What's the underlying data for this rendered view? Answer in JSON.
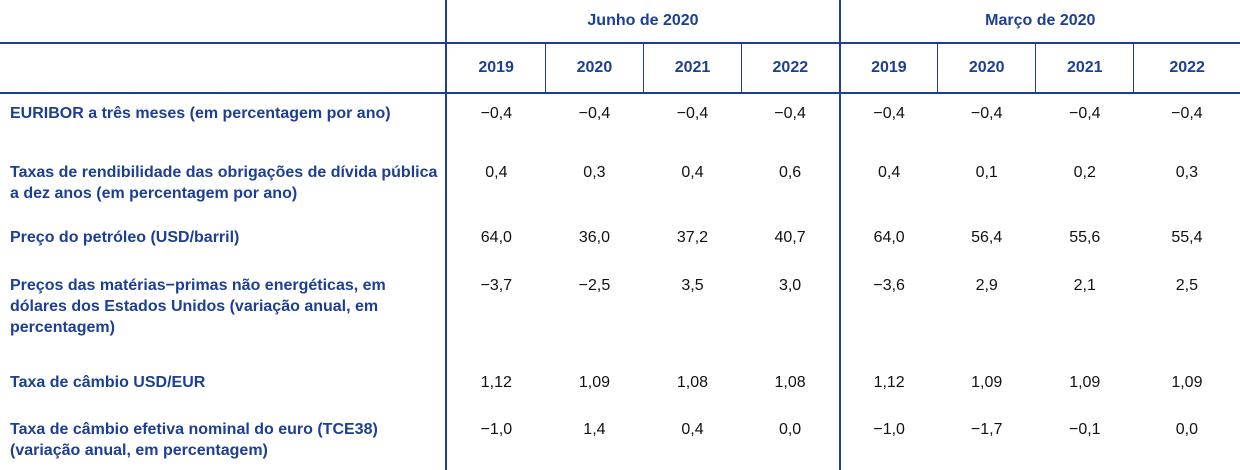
{
  "table": {
    "groups": [
      "Junho de 2020",
      "Março de 2020"
    ],
    "years": [
      "2019",
      "2020",
      "2021",
      "2022",
      "2019",
      "2020",
      "2021",
      "2022"
    ],
    "rows": [
      {
        "label": "EURIBOR a três meses (em percentagem por ano)",
        "values": [
          "−0,4",
          "−0,4",
          "−0,4",
          "−0,4",
          "−0,4",
          "−0,4",
          "−0,4",
          "−0,4"
        ]
      },
      {
        "label": "Taxas de rendibilidade das obrigações de dívida pública a dez anos (em percentagem por ano)",
        "values": [
          "0,4",
          "0,3",
          "0,4",
          "0,6",
          "0,4",
          "0,1",
          "0,2",
          "0,3"
        ]
      },
      {
        "label": "Preço do petróleo (USD/barril)",
        "values": [
          "64,0",
          "36,0",
          "37,2",
          "40,7",
          "64,0",
          "56,4",
          "55,6",
          "55,4"
        ]
      },
      {
        "label": "Preços das matérias−primas não energéticas, em dólares dos Estados Unidos (variação anual, em percentagem)",
        "values": [
          "−3,7",
          "−2,5",
          "3,5",
          "3,0",
          "−3,6",
          "2,9",
          "2,1",
          "2,5"
        ]
      },
      {
        "label": "Taxa de câmbio USD/EUR",
        "values": [
          "1,12",
          "1,09",
          "1,08",
          "1,08",
          "1,12",
          "1,09",
          "1,09",
          "1,09"
        ]
      },
      {
        "label": "Taxa de câmbio efetiva nominal do euro (TCE38) (variação anual, em percentagem)",
        "values": [
          "−1,0",
          "1,4",
          "0,4",
          "0,0",
          "−1,0",
          "−1,7",
          "−0,1",
          "0,0"
        ]
      }
    ]
  },
  "colors": {
    "accent": "#1c3f94",
    "text": "#111111"
  }
}
